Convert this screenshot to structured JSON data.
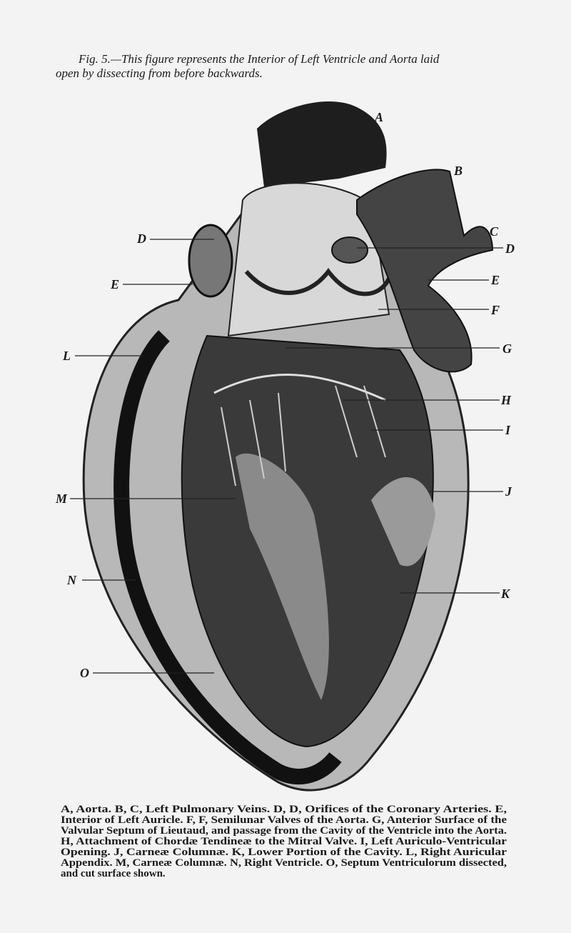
{
  "caption": {
    "lines": [
      "Fig. 5.—This figure represents the Interior of Left Ventricle and Aorta laid",
      "open by dissecting from before backwards."
    ]
  },
  "figure": {
    "labels": [
      "A",
      "B",
      "C",
      "D",
      "E",
      "F",
      "G",
      "H",
      "I",
      "J",
      "K",
      "D",
      "E",
      "L",
      "M",
      "N",
      "O"
    ]
  },
  "legend": {
    "lines": [
      "A, Aorta. B, C, Left Pulmonary Veins. D, D, Orifices of the Coronary Arteries. E,",
      "Interior of Left Auricle. F, F, Semilunar Valves of the Aorta. G, Anterior Surface of the",
      "Valvular Septum of Lieutaud, and passage from the Cavity of the Ventricle into the Aorta.",
      "H, Attachment of Chordæ Tendineæ to the Mitral Valve. I, Left Auriculo-Ventricular",
      "Opening. J, Carneæ Columnæ. K, Lower Portion of the Cavity. L, Right Auricular",
      "Appendix. M, Carneæ Columnæ. N, Right Ventricle. O, Septum Ventriculorum dissected,",
      "and cut surface shown."
    ]
  }
}
